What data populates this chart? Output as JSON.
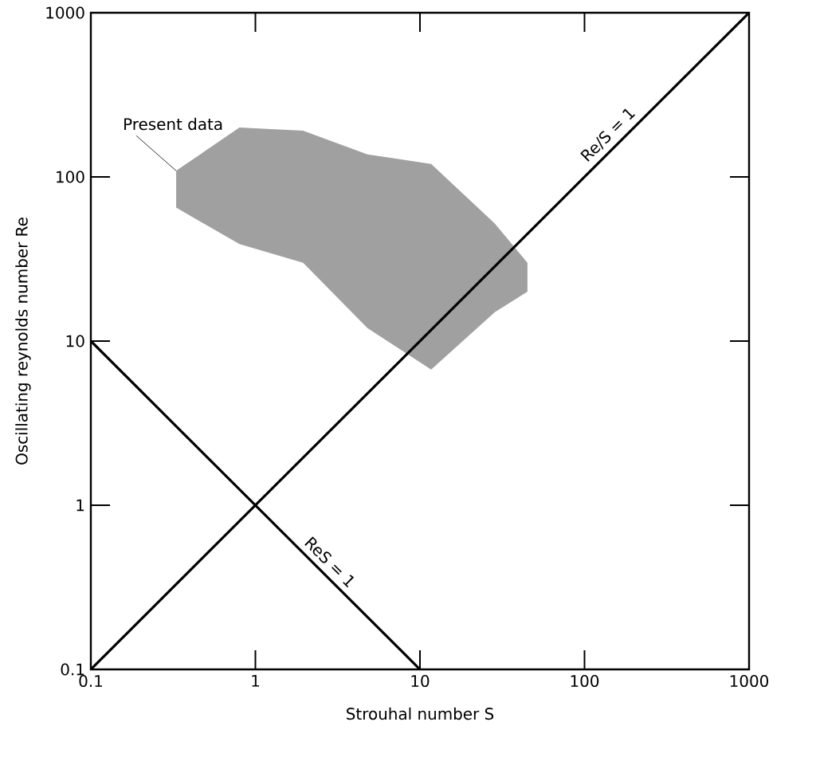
{
  "chart_data": {
    "type": "line",
    "xlabel": "Strouhal number S",
    "ylabel": "Oscillating reynolds number Re",
    "log": "xy",
    "xlim": [
      0.1,
      1000
    ],
    "ylim": [
      0.1,
      1000
    ],
    "xticks": [
      0.1,
      1,
      10,
      100,
      1000
    ],
    "yticks": [
      0.1,
      1,
      10,
      100,
      1000
    ],
    "series": [
      {
        "type": "area",
        "name": "Present data",
        "color": "#a0a0a0",
        "x": [
          0.33,
          0.8,
          1.95,
          4.8,
          11.7,
          28.5,
          45,
          45,
          28.5,
          11.7,
          4.8,
          1.95,
          0.8,
          0.33
        ],
        "values": [
          109,
          200,
          191,
          137,
          120,
          52,
          30,
          20,
          15,
          6.7,
          12,
          30,
          39,
          65
        ]
      },
      {
        "name": "Re/S = 1",
        "color": "#000000",
        "x": [
          0.1,
          1000
        ],
        "values": [
          0.1,
          1000
        ]
      },
      {
        "name": "ReS = 1",
        "color": "#000000",
        "x": [
          0.1,
          10
        ],
        "values": [
          10,
          0.1
        ]
      }
    ]
  }
}
